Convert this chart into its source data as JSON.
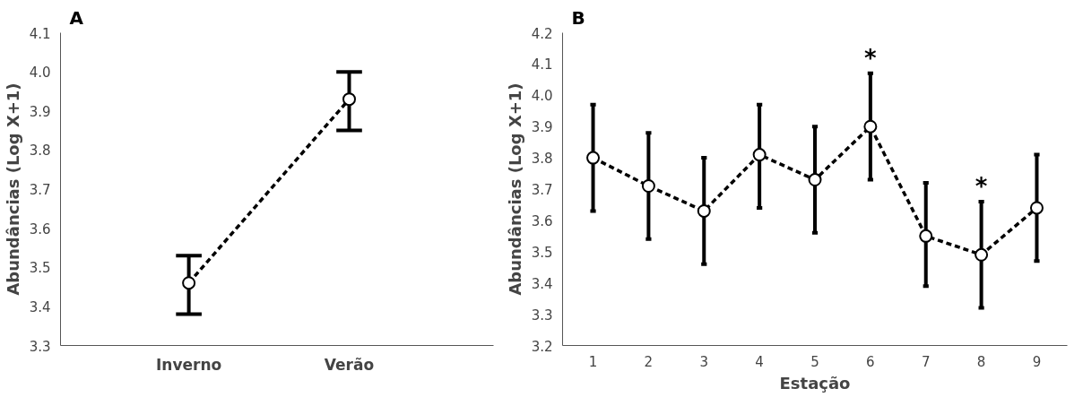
{
  "chart_data": [
    {
      "type": "line",
      "title": "A",
      "ylabel": "Abundâncias (Log X+1)",
      "categories": [
        "Inverno",
        "Verão"
      ],
      "values": [
        3.46,
        3.93
      ],
      "errors": [
        [
          3.38,
          3.53
        ],
        [
          3.85,
          4.0
        ]
      ],
      "color": "#000000",
      "ylim": [
        3.3,
        4.1
      ],
      "yticks": [
        3.3,
        3.4,
        3.5,
        3.6,
        3.7,
        3.8,
        3.9,
        {
          "value": 4.0,
          "label": "4.0"
        },
        4.1
      ],
      "grid": false,
      "marker": "circle",
      "line_style": "dashed"
    },
    {
      "type": "line",
      "title": "B",
      "ylabel": "Abundâncias (Log X+1)",
      "xlabel": "Estação",
      "categories": [
        "1",
        "2",
        "3",
        "4",
        "5",
        "6",
        "7",
        "8",
        "9"
      ],
      "values": [
        3.8,
        3.71,
        3.63,
        3.81,
        3.73,
        3.9,
        3.55,
        3.49,
        3.64
      ],
      "errors": [
        [
          3.63,
          3.97
        ],
        [
          3.54,
          3.88
        ],
        [
          3.46,
          3.8
        ],
        [
          3.64,
          3.97
        ],
        [
          3.56,
          3.9
        ],
        [
          3.73,
          4.07
        ],
        [
          3.39,
          3.72
        ],
        [
          3.32,
          3.66
        ],
        [
          3.47,
          3.81
        ]
      ],
      "color": "#000000",
      "ylim": [
        3.2,
        4.2
      ],
      "yticks": [
        3.2,
        3.3,
        3.4,
        3.5,
        3.6,
        3.7,
        3.8,
        3.9,
        {
          "value": 4.0,
          "label": "4.0"
        },
        4.1,
        4.2
      ],
      "grid": false,
      "marker": "circle",
      "line_style": "dashed",
      "annotations": [
        {
          "text": "*",
          "x": "6",
          "y": 4.07
        },
        {
          "text": "*",
          "x": "8",
          "y": 3.66
        }
      ]
    }
  ]
}
